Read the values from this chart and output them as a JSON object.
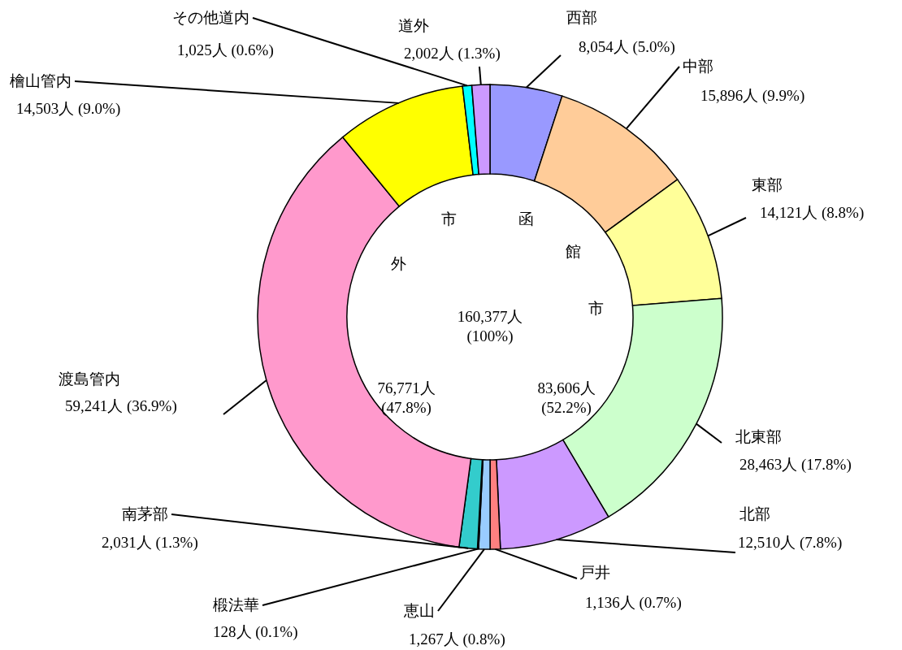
{
  "chart_data": {
    "type": "donut",
    "categories": [
      "西部",
      "中部",
      "東部",
      "北東部",
      "北部",
      "戸井",
      "恵山",
      "椴法華",
      "南茅部",
      "渡島管内",
      "檜山管内",
      "その他道内",
      "道外"
    ],
    "values": [
      8054,
      15896,
      14121,
      28463,
      12510,
      1136,
      1267,
      128,
      2031,
      59241,
      14503,
      1025,
      2002
    ],
    "value_labels": [
      "8,054人 (5.0%)",
      "15,896人 (9.9%)",
      "14,121人 (8.8%)",
      "28,463人 (17.8%)",
      "12,510人 (7.8%)",
      "1,136人 (0.7%)",
      "1,267人 (0.8%)",
      "128人 (0.1%)",
      "2,031人 (1.3%)",
      "59,241人 (36.9%)",
      "14,503人 (9.0%)",
      "1,025人 (0.6%)",
      "2,002人 (1.3%)"
    ],
    "colors": [
      "#9999ff",
      "#ffcc99",
      "#ffff99",
      "#ccffcc",
      "#cc99ff",
      "#ff8080",
      "#99ccff",
      "#ccffff",
      "#33cccc",
      "#ff99cc",
      "#ffff00",
      "#00ffff",
      "#cc99ff"
    ],
    "annotations": [
      "函",
      "館",
      "市",
      "市",
      "外",
      "160,377人\n(100%)",
      "83,606人\n(52.2%)",
      "76,771人\n(47.8%)"
    ]
  }
}
